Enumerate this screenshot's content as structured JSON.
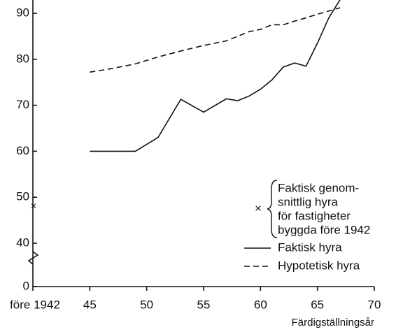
{
  "chart_data": {
    "type": "line",
    "x_label": "Färdigställningsår",
    "xlim": [
      40,
      70
    ],
    "xticks": [
      {
        "value": 40,
        "label": "före 1942"
      },
      45,
      50,
      55,
      60,
      65,
      70
    ],
    "ylim": [
      0,
      93
    ],
    "y_break": [
      0,
      40
    ],
    "yticks": [
      0,
      40,
      50,
      60,
      70,
      80,
      90
    ],
    "series": [
      {
        "name": "Faktisk hyra",
        "color": "#111111",
        "dash": "solid",
        "x": [
          45,
          49,
          51,
          53,
          55,
          57,
          58,
          59,
          60,
          61,
          62,
          63,
          64,
          65,
          66,
          67
        ],
        "values": [
          60,
          60,
          63,
          71.3,
          68.5,
          71.4,
          71,
          72,
          73.5,
          75.5,
          78.3,
          79.2,
          78.5,
          83.5,
          89,
          93
        ]
      },
      {
        "name": "Hypotetisk hyra",
        "color": "#111111",
        "dash": "dashed",
        "x": [
          45,
          47,
          49,
          51,
          53,
          55,
          57,
          58,
          59,
          60,
          61,
          62,
          63,
          64,
          65,
          66,
          67
        ],
        "values": [
          77.2,
          78,
          79,
          80.5,
          81.8,
          83,
          84,
          85,
          86,
          86.5,
          87.5,
          87.5,
          88.3,
          89,
          89.8,
          90.5,
          91.2
        ]
      },
      {
        "name": [
          "Faktisk genom-",
          "snittlig hyra",
          "för fastigheter",
          "byggda före 1942"
        ],
        "color": "#111111",
        "marker": "x",
        "x": [
          40
        ],
        "values": [
          48
        ]
      }
    ]
  }
}
